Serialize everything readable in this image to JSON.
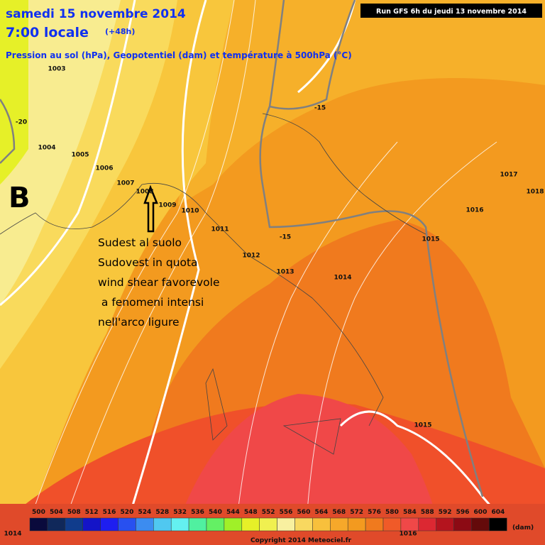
{
  "header": {
    "date": "samedi 15 novembre 2014",
    "time": "7:00 locale",
    "lead": "(+48h)",
    "subtitle": "Pression au sol (hPa), Geopotentiel (dam) et température à 500hPa (°C)",
    "run": "Run GFS 6h du jeudi 13 novembre 2014"
  },
  "isobar_labels": [
    "1003",
    "1004",
    "1005",
    "1006",
    "1007",
    "1008",
    "1009",
    "1010",
    "1011",
    "1012",
    "1013",
    "1014",
    "1015",
    "1016",
    "1017",
    "1018",
    "1015",
    "1014",
    "1016"
  ],
  "temperature_labels": [
    "-20",
    "-15",
    "-15"
  ],
  "pressure_center": "B",
  "annotation": [
    "Sudest al suolo",
    "Sudovest in quota",
    "wind shear favorevole",
    " a fenomeni intensi",
    "nell'arco ligure"
  ],
  "legend": {
    "values": [
      500,
      504,
      508,
      512,
      516,
      520,
      524,
      528,
      532,
      536,
      540,
      544,
      548,
      552,
      556,
      560,
      564,
      568,
      572,
      576,
      580,
      584,
      588,
      592,
      596,
      600,
      604
    ],
    "unit": "(dam)"
  },
  "copyright": "Copyright 2014 Meteociel.fr"
}
